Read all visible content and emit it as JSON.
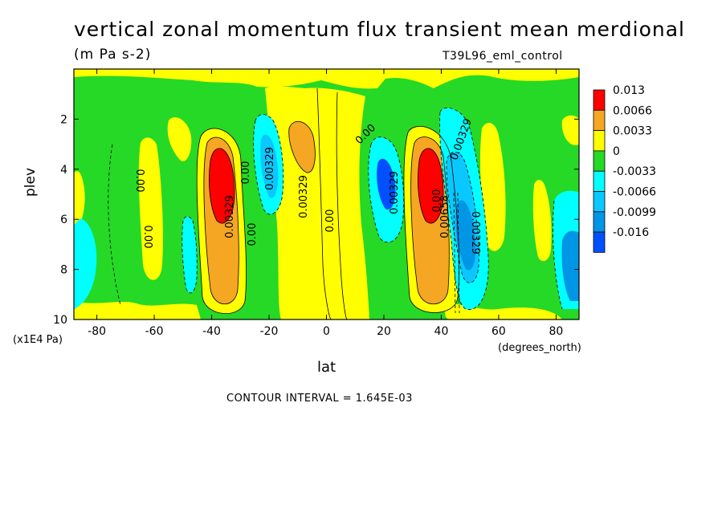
{
  "title": "vertical zonal momentum flux transient mean merdional",
  "units": "(m Pa s-2)",
  "run_id": "T39L96_eml_control",
  "contour_interval": "CONTOUR INTERVAL = 1.645E-03",
  "colors": {
    "red": "#ff0000",
    "orange": "#f5a623",
    "yellow": "#ffff00",
    "green": "#26d926",
    "cyan": "#00ffff",
    "lightblue": "#0ac8ff",
    "midblue": "#0096e6",
    "blue": "#0050ff"
  },
  "chart_data": {
    "type": "heatmap",
    "title": "vertical zonal momentum flux transient mean merdional",
    "xlabel": "lat",
    "ylabel": "plev",
    "x_units": "(degrees_north)",
    "y_units": "(x1E4 Pa)",
    "xlim": [
      -88,
      88
    ],
    "ylim": [
      10,
      0
    ],
    "x_ticks": [
      -80,
      -60,
      -40,
      -20,
      0,
      20,
      40,
      60,
      80
    ],
    "y_ticks": [
      2,
      4,
      6,
      8,
      10
    ],
    "legend": {
      "placement": "right",
      "labels": [
        "0.013",
        "0.0066",
        "0.0033",
        "0",
        "-0.0033",
        "-0.0066",
        "-0.0099",
        "-0.016"
      ],
      "colors": [
        "#ff0000",
        "#f5a623",
        "#ffff00",
        "#26d926",
        "#00ffff",
        "#0ac8ff",
        "#0096e6",
        "#0050ff"
      ]
    },
    "contour_labels": [
      "0.00",
      "0.00",
      "0.00329",
      "0.00",
      "0.00329",
      "0.00",
      "0.00329",
      "0.00",
      "0.00",
      "0.00329",
      "0.00",
      "0.00329",
      "0.00329",
      "0.00658"
    ],
    "features": [
      {
        "lat": -37,
        "plev": 5,
        "value": 0.013,
        "note": "southern positive maximum"
      },
      {
        "lat": 37,
        "plev": 5,
        "value": 0.013,
        "note": "northern positive maximum"
      },
      {
        "lat": -17,
        "plev": 4.5,
        "value": -0.0066,
        "note": "southern negative lobe"
      },
      {
        "lat": 25,
        "plev": 4.5,
        "value": -0.016,
        "note": "northern negative lobe"
      },
      {
        "lat": 49,
        "plev": 7,
        "value": -0.0099,
        "note": "northern negative lobe"
      },
      {
        "lat": -7,
        "plev": 3,
        "value": 0.0066,
        "note": "equatorial positive"
      }
    ]
  }
}
